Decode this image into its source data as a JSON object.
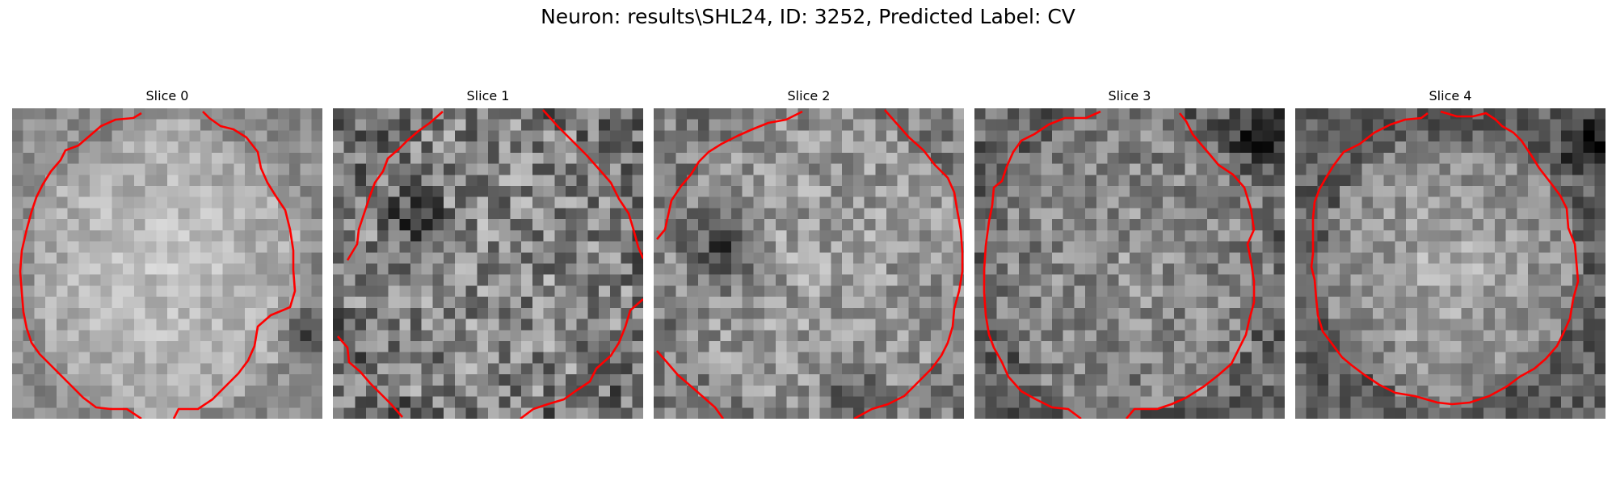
{
  "figure": {
    "title": "Neuron: results\\SHL24, ID: 3252, Predicted Label: CV"
  },
  "panels": [
    {
      "title": "Slice 0",
      "image": "grayscale-noise-patch-with-red-contour",
      "contour_color": "#ff0000"
    },
    {
      "title": "Slice 1",
      "image": "grayscale-noise-patch-with-red-contour",
      "contour_color": "#ff0000"
    },
    {
      "title": "Slice 2",
      "image": "grayscale-noise-patch-with-red-contour",
      "contour_color": "#ff0000"
    },
    {
      "title": "Slice 3",
      "image": "grayscale-noise-patch-with-red-contour",
      "contour_color": "#ff0000"
    },
    {
      "title": "Slice 4",
      "image": "grayscale-noise-patch-with-red-contour",
      "contour_color": "#ff0000"
    }
  ]
}
